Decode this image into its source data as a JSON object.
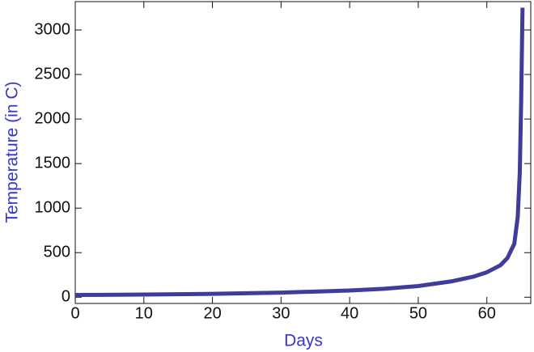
{
  "chart_data": {
    "type": "line",
    "x_label": "Days",
    "y_label": "Temperature (in C)",
    "x": [
      0,
      10,
      20,
      30,
      40,
      45,
      50,
      55,
      58,
      60,
      62,
      63,
      64,
      64.5,
      64.8,
      65,
      65.2
    ],
    "series": [
      {
        "color": "#3f3d99",
        "values": [
          25,
          30,
          38,
          52,
          75,
          95,
          125,
          180,
          230,
          280,
          360,
          440,
          600,
          900,
          1400,
          2200,
          3250
        ]
      }
    ],
    "xlim": [
      0,
      66.4
    ],
    "ylim": [
      -70,
      3318
    ],
    "xticks": [
      0,
      10,
      20,
      30,
      40,
      50,
      60
    ],
    "yticks": [
      0,
      500,
      1000,
      1500,
      2000,
      2500,
      3000
    ]
  }
}
